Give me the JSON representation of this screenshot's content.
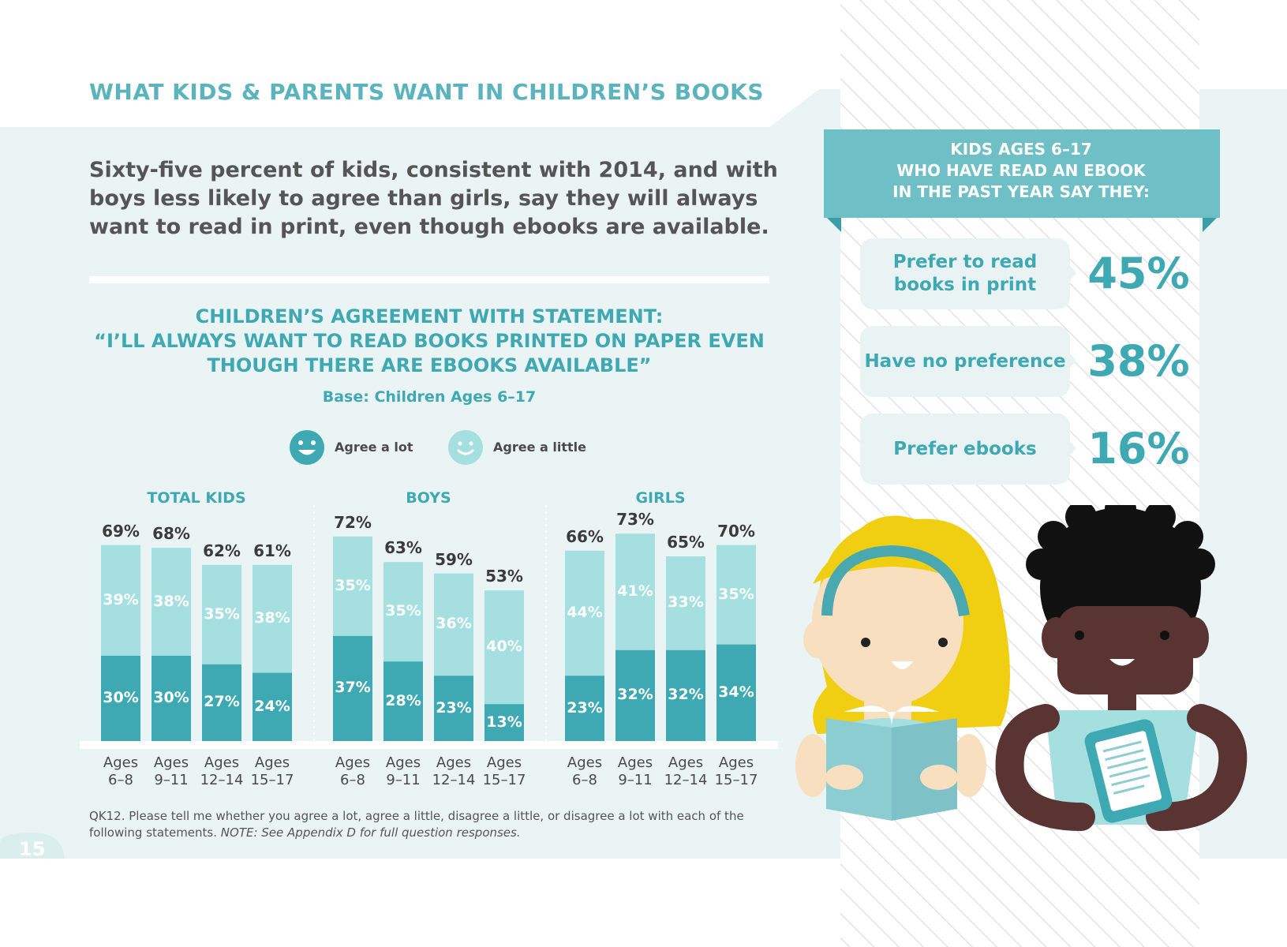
{
  "page": {
    "title": "WHAT KIDS & PARENTS WANT IN CHILDREN’S BOOKS",
    "intro": "Sixty-five percent of kids, consistent with 2014, and with boys less likely to agree than girls, say they will always want to read in print, even though ebooks are available.",
    "page_number": "15"
  },
  "chart_data": {
    "type": "bar",
    "stacked": true,
    "title_lines": [
      "CHILDREN’S AGREEMENT WITH STATEMENT:",
      "“I’LL ALWAYS WANT TO READ BOOKS PRINTED ON PAPER EVEN",
      "THOUGH THERE ARE EBOOKS AVAILABLE”"
    ],
    "base": "Base: Children Ages 6–17",
    "legend": [
      {
        "label": "Agree a lot",
        "color": "#3fa9b3"
      },
      {
        "label": "Agree a little",
        "color": "#a6dfe0"
      }
    ],
    "categories": [
      "Ages 6–8",
      "Ages 9–11",
      "Ages 12–14",
      "Ages 15–17"
    ],
    "category_lines": [
      [
        "Ages",
        "6–8"
      ],
      [
        "Ages",
        "9–11"
      ],
      [
        "Ages",
        "12–14"
      ],
      [
        "Ages",
        "15–17"
      ]
    ],
    "groups": [
      {
        "name": "TOTAL KIDS",
        "agree_a_lot": [
          30,
          30,
          27,
          24
        ],
        "agree_a_little": [
          39,
          38,
          35,
          38
        ],
        "total": [
          69,
          68,
          62,
          61
        ]
      },
      {
        "name": "BOYS",
        "agree_a_lot": [
          37,
          28,
          23,
          13
        ],
        "agree_a_little": [
          35,
          35,
          36,
          40
        ],
        "total": [
          72,
          63,
          59,
          53
        ]
      },
      {
        "name": "GIRLS",
        "agree_a_lot": [
          23,
          32,
          32,
          34
        ],
        "agree_a_little": [
          44,
          41,
          33,
          35
        ],
        "total": [
          66,
          73,
          65,
          70
        ]
      }
    ],
    "value_suffix": "%"
  },
  "footnote": {
    "text": "QK12. Please tell me whether you agree a lot, agree a little, disagree a little, or disagree a lot with each of the following statements.",
    "note": "NOTE: See Appendix D for full question responses."
  },
  "sidebar": {
    "header_lines": [
      "KIDS AGES 6–17",
      "WHO HAVE READ AN EBOOK",
      "IN THE PAST YEAR SAY THEY:"
    ],
    "items": [
      {
        "label_lines": [
          "Prefer to read",
          "books in print"
        ],
        "value": "45%"
      },
      {
        "label_lines": [
          "Have no preference"
        ],
        "value": "38%"
      },
      {
        "label_lines": [
          "Prefer ebooks"
        ],
        "value": "16%"
      }
    ]
  },
  "colors": {
    "teal_dark": "#3fa9b3",
    "teal_light": "#a6dfe0",
    "panel_bg": "#ebf4f4",
    "header_teal": "#6fbfc6"
  }
}
